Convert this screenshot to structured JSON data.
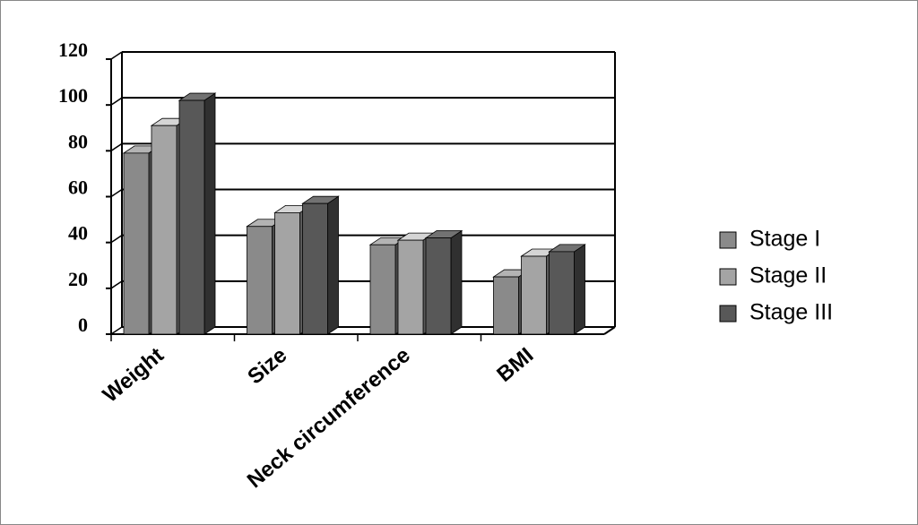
{
  "chart_data": {
    "type": "bar",
    "categories": [
      "Weight",
      "Size",
      "Neck circumference",
      "BMI"
    ],
    "series": [
      {
        "name": "Stage I",
        "color": "#8a8a8a",
        "values": [
          79,
          47,
          39,
          25
        ]
      },
      {
        "name": "Stage II",
        "color": "#a4a4a4",
        "values": [
          91,
          53,
          41,
          34
        ]
      },
      {
        "name": "Stage III",
        "color": "#585858",
        "values": [
          102,
          57,
          42,
          36
        ]
      }
    ],
    "ylim": [
      0,
      120
    ],
    "yticks": [
      0,
      20,
      40,
      60,
      80,
      100,
      120
    ],
    "grid": true
  }
}
